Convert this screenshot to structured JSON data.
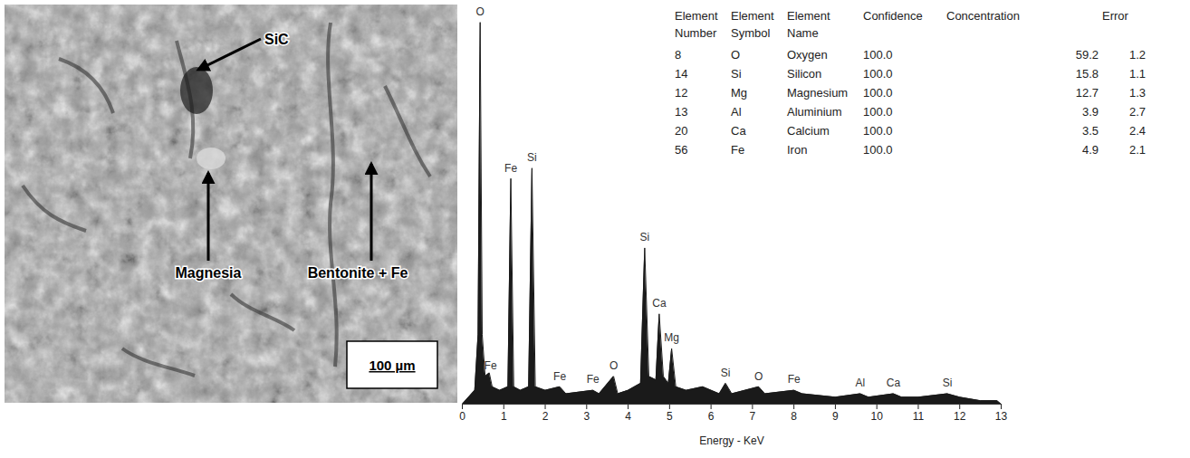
{
  "micrograph": {
    "labels": [
      "SiC",
      "Magnesia",
      "Bentonite + Fe"
    ],
    "scale_bar": "100 µm"
  },
  "chart_data": {
    "type": "area",
    "color": "#1a1a1a",
    "x_label": "Energy - KeV",
    "x": [
      0,
      0.3,
      0.38,
      0.43,
      0.48,
      0.55,
      0.65,
      0.72,
      0.9,
      1.1,
      1.17,
      1.24,
      1.4,
      1.6,
      1.68,
      1.76,
      2.0,
      2.35,
      2.5,
      3.15,
      3.3,
      3.65,
      3.75,
      4.0,
      4.3,
      4.4,
      4.5,
      4.67,
      4.75,
      4.85,
      4.97,
      5.05,
      5.15,
      5.4,
      5.8,
      6.2,
      6.35,
      6.5,
      7.15,
      7.3,
      8.0,
      8.2,
      9.0,
      9.6,
      9.8,
      10.4,
      10.6,
      11.0,
      11.7,
      12.0,
      12.5,
      12.9,
      13
    ],
    "values": [
      0,
      4,
      20,
      110,
      20,
      8,
      9,
      5,
      4,
      5,
      65,
      5,
      4,
      5,
      68,
      5,
      4,
      5,
      3,
      4,
      3,
      8,
      3,
      4,
      6,
      45,
      8,
      7,
      26,
      8,
      6,
      16,
      5,
      4,
      5,
      3,
      6,
      3,
      5,
      3,
      4,
      3,
      2,
      3,
      2,
      3,
      2,
      2,
      3,
      2,
      1,
      1,
      0
    ],
    "xlim": [
      0,
      13
    ],
    "xticks": [
      0,
      1,
      2,
      3,
      4,
      5,
      6,
      7,
      8,
      9,
      10,
      11,
      12,
      13
    ],
    "ylim": [
      0,
      115
    ],
    "tick_labels": "x",
    "grid": false,
    "annotations": [
      {
        "x": 0.43,
        "y": 112,
        "text": "O"
      },
      {
        "x": 0.68,
        "y": 10,
        "text": "Fe"
      },
      {
        "x": 1.17,
        "y": 67,
        "text": "Fe"
      },
      {
        "x": 1.68,
        "y": 70,
        "text": "Si"
      },
      {
        "x": 2.35,
        "y": 7,
        "text": "Fe"
      },
      {
        "x": 3.15,
        "y": 6,
        "text": "Fe"
      },
      {
        "x": 3.65,
        "y": 10,
        "text": "O"
      },
      {
        "x": 4.4,
        "y": 47,
        "text": "Si"
      },
      {
        "x": 4.75,
        "y": 28,
        "text": "Ca"
      },
      {
        "x": 5.05,
        "y": 18,
        "text": "Mg"
      },
      {
        "x": 6.35,
        "y": 8,
        "text": "Si"
      },
      {
        "x": 7.15,
        "y": 7,
        "text": "O"
      },
      {
        "x": 8.0,
        "y": 6,
        "text": "Fe"
      },
      {
        "x": 9.6,
        "y": 5,
        "text": "Al"
      },
      {
        "x": 10.4,
        "y": 5,
        "text": "Ca"
      },
      {
        "x": 11.7,
        "y": 5,
        "text": "Si"
      }
    ]
  },
  "table": {
    "columns": [
      "Element Number",
      "Element Symbol",
      "Element Name",
      "Confidence",
      "Concentration",
      "Error"
    ],
    "rows": [
      [
        "8",
        "O",
        "Oxygen",
        "100.0",
        "59.2",
        "1.2"
      ],
      [
        "14",
        "Si",
        "Silicon",
        "100.0",
        "15.8",
        "1.1"
      ],
      [
        "12",
        "Mg",
        "Magnesium",
        "100.0",
        "12.7",
        "1.3"
      ],
      [
        "13",
        "Al",
        "Aluminium",
        "100.0",
        "3.9",
        "2.7"
      ],
      [
        "20",
        "Ca",
        "Calcium",
        "100.0",
        "3.5",
        "2.4"
      ],
      [
        "56",
        "Fe",
        "Iron",
        "100.0",
        "4.9",
        "2.1"
      ]
    ]
  }
}
